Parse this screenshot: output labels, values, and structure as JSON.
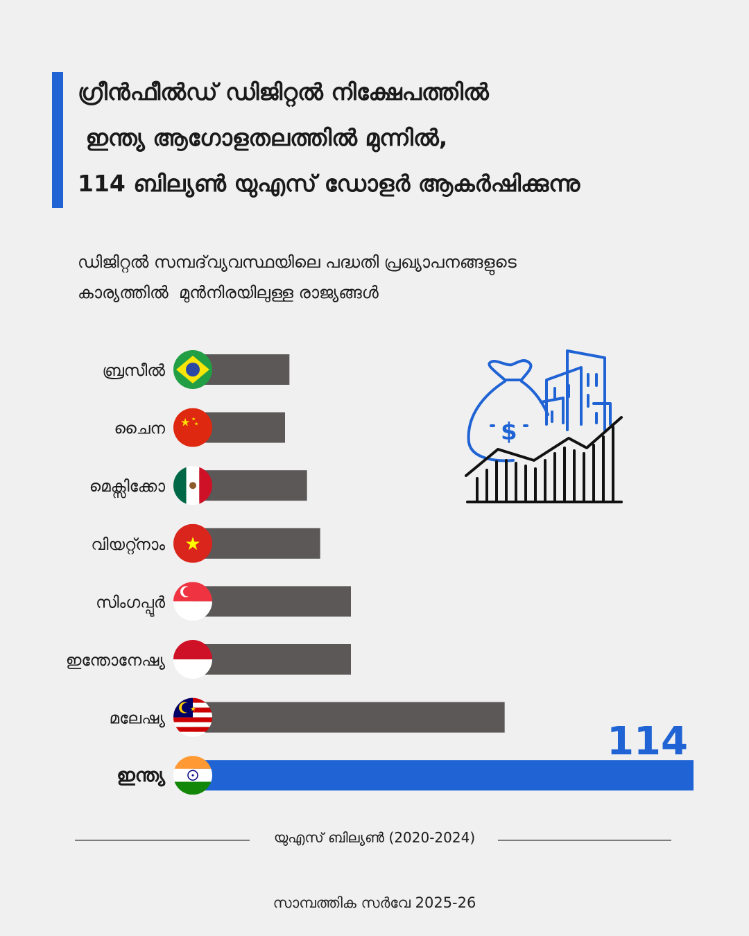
{
  "header": {
    "title_lines": [
      "ഗ്രീൻഫീൽഡ് ഡിജിറ്റൽ നിക്ഷേപത്തിൽ",
      " ഇന്ത്യ ആഗോളതലത്തിൽ മുന്നിൽ,",
      "114 ബില്യൺ യുഎസ് ഡോളർ ആകർഷിക്കുന്നു"
    ],
    "subtitle_lines": [
      "ഡിജിറ്റൽ സമ്പദ്‌വ്യവസ്ഥയിലെ പദ്ധതി പ്രഖ്യാപനങ്ങളുടെ",
      "കാര്യത്തിൽ  മുൻനിരയിലുള്ള രാജ്യങ്ങൾ"
    ]
  },
  "colors": {
    "accent": "#1f63d4",
    "bar": "#5b5857",
    "background": "#f0f0f0"
  },
  "chart_data": {
    "type": "bar",
    "orientation": "horizontal",
    "categories": [
      "ബ്രസീൽ",
      "ചൈന",
      "മെക്സിക്കോ",
      "വിയറ്റ്നാം",
      "സിംഗപ്പൂർ",
      "ഇന്തോനേഷ്യ",
      "മലേഷ്യ",
      "ഇന്ത്യ"
    ],
    "values": [
      22,
      21,
      26,
      29,
      36,
      36,
      71,
      114
    ],
    "highlight": "ഇന്ത്യ",
    "highlight_label": "114",
    "flags": [
      "brazil-flag",
      "china-flag",
      "mexico-flag",
      "vietnam-flag",
      "singapore-flag",
      "indonesia-flag",
      "malaysia-flag",
      "india-flag"
    ],
    "xlim": [
      0,
      114
    ],
    "unit_label": "യുഎസ് ബില്യൺ (2020-2024)"
  },
  "footer": {
    "source": "സാമ്പത്തിക സർവേ 2025-26"
  },
  "illustration": {
    "icon": "money-bag-city-growth-icon"
  }
}
